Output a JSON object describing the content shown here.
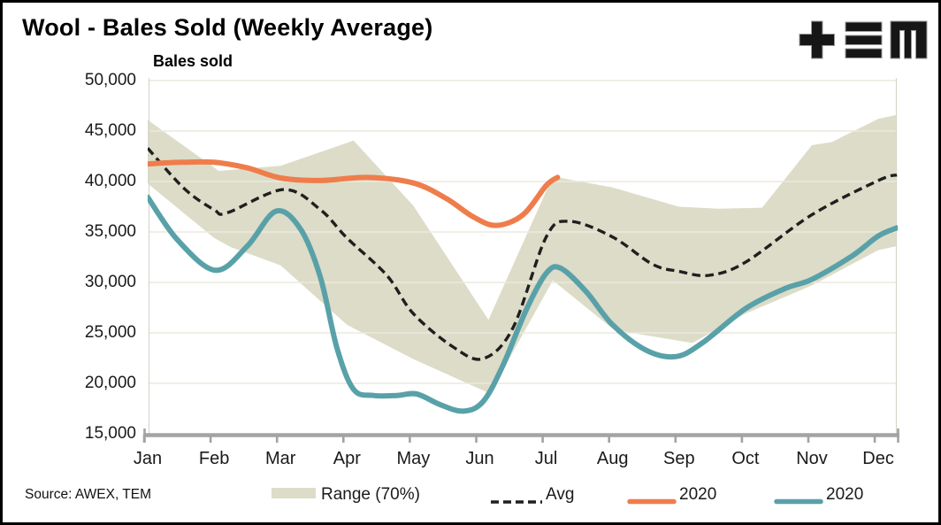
{
  "title": "Wool - Bales Sold (Weekly Average)",
  "source": "Source: AWEX, TEM",
  "logo": {
    "glyphs": "+ three-bars M",
    "name": "TEM"
  },
  "colors": {
    "band": "#DCDCC8",
    "avg": "#1F1F1F",
    "orange": "#EF7D4B",
    "teal": "#59A1A8",
    "grid": "#ECEADD",
    "plot_edge": "#D8D6C9",
    "axis": "#A3A3A3",
    "text": "#1A1A1A"
  },
  "chart_data": {
    "type": "line",
    "title": "Wool - Bales Sold (Weekly Average)",
    "ylabel": "Bales sold",
    "xlabel": "",
    "ylim": [
      15000,
      50000
    ],
    "ytick_step": 5000,
    "ytick_values": [
      50000,
      45000,
      40000,
      35000,
      30000,
      25000,
      20000,
      15000
    ],
    "ytick_labels": [
      "50,000",
      "45,000",
      "40,000",
      "35,000",
      "30,000",
      "25,000",
      "20,000",
      "15,000"
    ],
    "categories": [
      "Jan",
      "Feb",
      "Mar",
      "Apr",
      "May",
      "Jun",
      "Jul",
      "Aug",
      "Sep",
      "Oct",
      "Nov",
      "Dec"
    ],
    "x_unit": "month index, 0 = Jan, fractional = weeks within month",
    "grid": "horizontal only",
    "legend_position": "bottom",
    "legend": [
      {
        "label": "Range (70%)",
        "swatch": "band"
      },
      {
        "label": "Avg",
        "swatch": "dashed"
      },
      {
        "label": "2020",
        "swatch": "orange"
      },
      {
        "label": "2020",
        "swatch": "teal"
      }
    ],
    "series": [
      {
        "name": "Range (70%)",
        "type": "band",
        "color_key": "band",
        "upper": [
          [
            0,
            46100
          ],
          [
            1.07,
            41050
          ],
          [
            2,
            41550
          ],
          [
            3.1,
            44050
          ],
          [
            4,
            37600
          ],
          [
            5.13,
            26300
          ],
          [
            6.1,
            40500
          ],
          [
            7,
            39400
          ],
          [
            8,
            37500
          ],
          [
            8.6,
            37300
          ],
          [
            9.25,
            37400
          ],
          [
            10,
            43600
          ],
          [
            10.3,
            43900
          ],
          [
            11,
            46200
          ],
          [
            11.28,
            46600
          ]
        ],
        "lower": [
          [
            0,
            39800
          ],
          [
            1,
            34400
          ],
          [
            1.25,
            33500
          ],
          [
            2,
            31700
          ],
          [
            3,
            25800
          ],
          [
            4,
            22400
          ],
          [
            5.15,
            19000
          ],
          [
            6.1,
            30200
          ],
          [
            7,
            25400
          ],
          [
            7.2,
            25100
          ],
          [
            8.2,
            24000
          ],
          [
            9,
            26900
          ],
          [
            10,
            29700
          ],
          [
            11,
            33200
          ],
          [
            11.28,
            33600
          ]
        ]
      },
      {
        "name": "Avg",
        "type": "dashed-line",
        "color_key": "avg",
        "points": [
          [
            0,
            43300
          ],
          [
            0.55,
            39300
          ],
          [
            1,
            37200
          ],
          [
            1.2,
            36900
          ],
          [
            2.05,
            39200
          ],
          [
            2.6,
            37200
          ],
          [
            3,
            34400
          ],
          [
            3.6,
            30700
          ],
          [
            4,
            26900
          ],
          [
            4.6,
            23600
          ],
          [
            5.05,
            22450
          ],
          [
            5.5,
            25500
          ],
          [
            6,
            34500
          ],
          [
            6.35,
            36050
          ],
          [
            7,
            34500
          ],
          [
            7.6,
            31800
          ],
          [
            8,
            31100
          ],
          [
            8.45,
            30700
          ],
          [
            9,
            32000
          ],
          [
            10,
            36700
          ],
          [
            11,
            40100
          ],
          [
            11.28,
            40650
          ]
        ]
      },
      {
        "name": "2020",
        "type": "line",
        "color_key": "orange",
        "points": [
          [
            0,
            41750
          ],
          [
            0.5,
            41900
          ],
          [
            1,
            41900
          ],
          [
            1.5,
            41350
          ],
          [
            2,
            40350
          ],
          [
            2.6,
            40100
          ],
          [
            3.3,
            40400
          ],
          [
            4,
            39850
          ],
          [
            4.5,
            38300
          ],
          [
            4.9,
            36500
          ],
          [
            5.25,
            35650
          ],
          [
            5.65,
            36700
          ],
          [
            6.0,
            39600
          ],
          [
            6.17,
            40400
          ]
        ]
      },
      {
        "name": "2020",
        "type": "line",
        "color_key": "teal",
        "points": [
          [
            0,
            38450
          ],
          [
            0.45,
            34200
          ],
          [
            1.02,
            31200
          ],
          [
            1.5,
            33600
          ],
          [
            1.93,
            37050
          ],
          [
            2.3,
            35300
          ],
          [
            2.6,
            30500
          ],
          [
            2.85,
            23500
          ],
          [
            3.1,
            19400
          ],
          [
            3.4,
            18800
          ],
          [
            3.75,
            18800
          ],
          [
            4.05,
            18950
          ],
          [
            4.4,
            17900
          ],
          [
            4.75,
            17250
          ],
          [
            5.05,
            18200
          ],
          [
            5.35,
            21800
          ],
          [
            5.7,
            27300
          ],
          [
            6.0,
            30900
          ],
          [
            6.22,
            31400
          ],
          [
            6.6,
            29100
          ],
          [
            7,
            25800
          ],
          [
            7.5,
            23300
          ],
          [
            7.95,
            22650
          ],
          [
            8.35,
            24000
          ],
          [
            9,
            27400
          ],
          [
            9.6,
            29400
          ],
          [
            10,
            30300
          ],
          [
            10.6,
            32600
          ],
          [
            11,
            34600
          ],
          [
            11.28,
            35400
          ]
        ]
      }
    ]
  }
}
